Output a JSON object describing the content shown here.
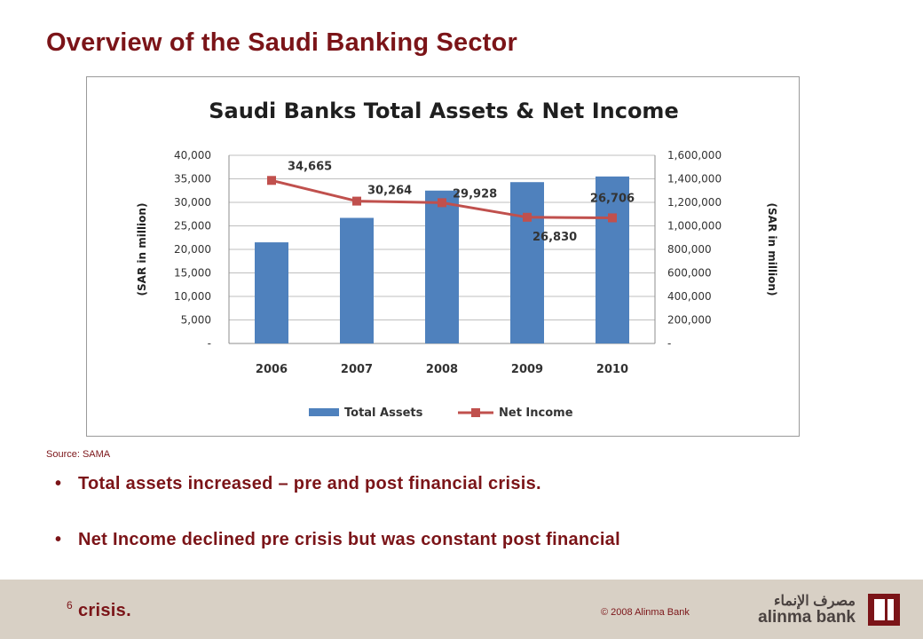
{
  "slide": {
    "title": "Overview of the Saudi Banking Sector",
    "source": "Source: SAMA",
    "bullets": [
      "Total assets increased – pre and post financial crisis.",
      "Net Income declined pre crisis but was constant post financial"
    ],
    "bullet_continuation": "crisis.",
    "page_number": "6",
    "copyright": "© 2008 Alinma Bank",
    "logo": {
      "arabic": "مصرف الإنماء",
      "english": "alinma bank"
    }
  },
  "colors": {
    "accent": "#7b1418",
    "bar": "#4f81bd",
    "line": "#c0504d",
    "footer": "#d8d0c5"
  },
  "chart_data": {
    "type": "bar",
    "title": "Saudi Banks Total Assets & Net Income",
    "categories": [
      "2006",
      "2007",
      "2008",
      "2009",
      "2010"
    ],
    "series": [
      {
        "name": "Total Assets",
        "type": "bar",
        "axis": "left",
        "values": [
          21500,
          26700,
          32500,
          34300,
          35500
        ]
      },
      {
        "name": "Net Income",
        "type": "line",
        "axis": "right",
        "values": [
          34665,
          30264,
          29928,
          26830,
          26706
        ],
        "labels": [
          "34,665",
          "30,264",
          "29,928",
          "26,830",
          "26,706"
        ]
      }
    ],
    "left_axis": {
      "label": "(SAR in million)",
      "ylim": [
        0,
        40000
      ],
      "ticks": [
        "-",
        "5,000",
        "10,000",
        "15,000",
        "20,000",
        "25,000",
        "30,000",
        "35,000",
        "40,000"
      ]
    },
    "right_axis": {
      "label": "(SAR in million)",
      "ylim": [
        0,
        1600000
      ],
      "ticks": [
        "-",
        "200,000",
        "400,000",
        "600,000",
        "800,000",
        "1,000,000",
        "1,200,000",
        "1,400,000",
        "1,600,000"
      ]
    },
    "grid": true,
    "legend": "bottom"
  }
}
